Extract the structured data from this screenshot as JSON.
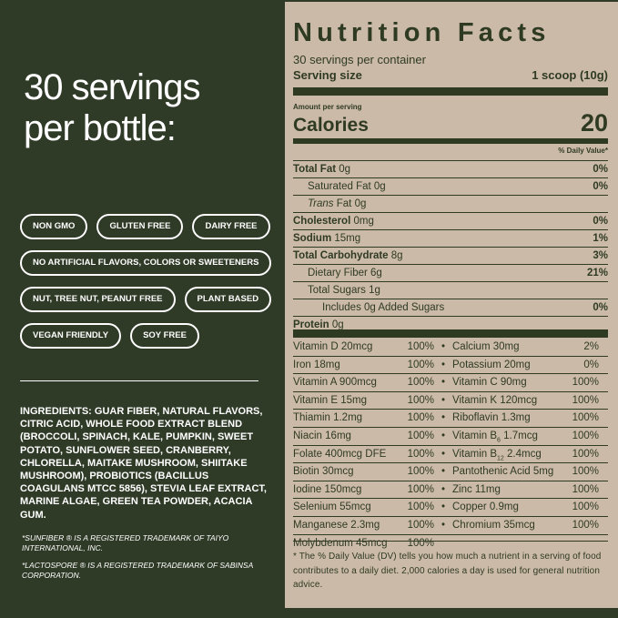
{
  "left": {
    "headline": [
      "30 servings",
      "per bottle:"
    ],
    "badges": [
      [
        "NON GMO",
        "GLUTEN FREE",
        "DAIRY FREE"
      ],
      [
        "NO ARTIFICIAL FLAVORS, COLORS OR SWEETENERS"
      ],
      [
        "NUT, TREE NUT, PEANUT FREE",
        "PLANT BASED"
      ],
      [
        "VEGAN FRIENDLY",
        "SOY FREE"
      ]
    ],
    "ingredients": "INGREDIENTS: GUAR FIBER, NATURAL FLAVORS, CITRIC ACID, WHOLE FOOD EXTRACT BLEND (BROCCOLI, SPINACH, KALE, PUMPKIN, SWEET POTATO, SUNFLOWER SEED, CRANBERRY, CHLORELLA, MAITAKE MUSHROOM, SHIITAKE MUSHROOM), PROBIOTICS (BACILLUS COAGULANS MTCC 5856), STEVIA LEAF EXTRACT, MARINE ALGAE, GREEN TEA POWDER, ACACIA GUM.",
    "notes": [
      "*SUNFIBER ® IS A REGISTERED TRADEMARK OF TAIYO INTERNATIONAL, INC.",
      "*LACTOSPORE ® IS A REGISTERED TRADEMARK OF SABINSA CORPORATION."
    ]
  },
  "nutrition": {
    "title": "Nutrition Facts",
    "servings": "30 servings per container",
    "serving_size_label": "Serving size",
    "serving_size": "1 scoop (10g)",
    "amount_per_serving": "Amount per serving",
    "calories_label": "Calories",
    "calories": "20",
    "dv_header": "% Daily Value*",
    "rows": [
      {
        "label": "Total Fat",
        "amount": "0g",
        "dv": "0%",
        "bold": true,
        "indent": 0
      },
      {
        "label": "Saturated Fat",
        "amount": "0g",
        "dv": "0%",
        "bold": false,
        "indent": 1
      },
      {
        "italic": "Trans",
        "label": "Fat",
        "amount": "0g",
        "bold": false,
        "indent": 1
      },
      {
        "label": "Cholesterol",
        "amount": "0mg",
        "dv": "0%",
        "bold": true,
        "indent": 0
      },
      {
        "label": "Sodium",
        "amount": "15mg",
        "dv": "1%",
        "bold": true,
        "indent": 0
      },
      {
        "label": "Total Carbohydrate",
        "amount": "8g",
        "dv": "3%",
        "bold": true,
        "indent": 0
      },
      {
        "label": "Dietary Fiber",
        "amount": "6g",
        "dv": "21%",
        "bold": false,
        "indent": 1
      },
      {
        "label": "Total Sugars",
        "amount": "1g",
        "bold": false,
        "indent": 1
      },
      {
        "label": "Includes 0g Added Sugars",
        "dv": "0%",
        "bold": false,
        "indent": 2
      },
      {
        "label": "Protein",
        "amount": "0g",
        "bold": true,
        "indent": 0
      }
    ],
    "vitamins": [
      [
        {
          "name": "Vitamin D 20mcg",
          "dv": "100%"
        },
        {
          "name": "Calcium 30mg",
          "dv": "2%"
        }
      ],
      [
        {
          "name": "Iron 18mg",
          "dv": "100%"
        },
        {
          "name": "Potassium 20mg",
          "dv": "0%"
        }
      ],
      [
        {
          "name": "Vitamin A 900mcg",
          "dv": "100%"
        },
        {
          "name": "Vitamin C 90mg",
          "dv": "100%"
        }
      ],
      [
        {
          "name": "Vitamin E 15mg",
          "dv": "100%"
        },
        {
          "name": "Vitamin K 120mcg",
          "dv": "100%"
        }
      ],
      [
        {
          "name": "Thiamin 1.2mg",
          "dv": "100%"
        },
        {
          "name": "Riboflavin 1.3mg",
          "dv": "100%"
        }
      ],
      [
        {
          "name": "Niacin 16mg",
          "dv": "100%"
        },
        {
          "name": "Vitamin B",
          "sub": "6",
          "amount": "1.7mcg",
          "dv": "100%"
        }
      ],
      [
        {
          "name": "Folate 400mcg DFE",
          "dv": "100%"
        },
        {
          "name": "Vitamin B",
          "sub": "12",
          "amount": "2.4mcg",
          "dv": "100%"
        }
      ],
      [
        {
          "name": "Biotin 30mcg",
          "dv": "100%"
        },
        {
          "name": "Pantothenic Acid 5mg",
          "dv": "100%"
        }
      ],
      [
        {
          "name": "Iodine 150mcg",
          "dv": "100%"
        },
        {
          "name": "Zinc 11mg",
          "dv": "100%"
        }
      ],
      [
        {
          "name": "Selenium 55mcg",
          "dv": "100%"
        },
        {
          "name": "Copper 0.9mg",
          "dv": "100%"
        }
      ],
      [
        {
          "name": "Manganese 2.3mg",
          "dv": "100%"
        },
        {
          "name": "Chromium 35mcg",
          "dv": "100%"
        }
      ],
      [
        {
          "name": "Molybdenum 45mcg",
          "dv": "100%"
        }
      ]
    ],
    "bullet": "•",
    "footnote": "* The % Daily Value (DV) tells you how much a nutrient in a serving of food contributes to a daily diet. 2,000 calories a day is used for general nutrition advice."
  }
}
